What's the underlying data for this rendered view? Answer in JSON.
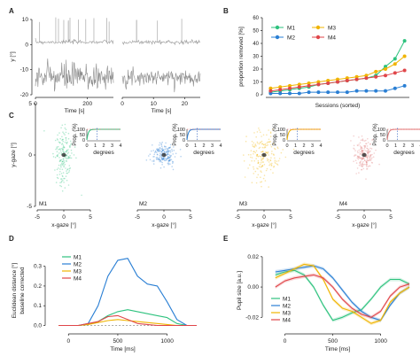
{
  "panel_labels": [
    "A",
    "B",
    "C",
    "D",
    "E"
  ],
  "chart_data": [
    {
      "panel": "A",
      "type": "line",
      "xlabel": "Time [s]",
      "ylabel": "y [°]",
      "left_xticks": [
        "0",
        "200"
      ],
      "right_xticks": [
        "0",
        "10",
        "20"
      ],
      "yticks": [
        "10",
        "0",
        "-10",
        "-20"
      ],
      "xlim_left": [
        0,
        300
      ],
      "xlim_right": [
        0,
        25
      ]
    },
    {
      "panel": "B",
      "type": "line",
      "xlabel": "Sessions (sorted)",
      "ylabel": "proportion removed [%]",
      "yticks": [
        "0",
        "10",
        "20",
        "30",
        "40",
        "50",
        "60"
      ],
      "ylim": [
        0,
        60
      ],
      "legend_position": "top-left",
      "colors": {
        "M1": "#2ec27e",
        "M2": "#2a7fd4",
        "M3": "#f0b400",
        "M4": "#e0464a"
      },
      "x": [
        1,
        2,
        3,
        4,
        5,
        6,
        7,
        8,
        9,
        10,
        11,
        12,
        13,
        14,
        15
      ],
      "series": [
        {
          "name": "M1",
          "values": [
            2,
            3,
            4,
            5,
            6,
            8,
            9,
            10,
            11,
            12,
            13,
            15,
            22,
            28,
            42
          ]
        },
        {
          "name": "M2",
          "values": [
            1,
            1,
            1,
            1,
            2,
            2,
            2,
            2,
            2,
            3,
            3,
            3,
            3,
            5,
            7
          ]
        },
        {
          "name": "M3",
          "values": [
            5,
            6,
            7,
            8,
            9,
            10,
            11,
            12,
            13,
            14,
            15,
            18,
            20,
            24,
            30
          ]
        },
        {
          "name": "M4",
          "values": [
            3,
            4,
            5,
            6,
            7,
            8,
            9,
            10,
            11,
            12,
            13,
            14,
            15,
            17,
            19
          ]
        }
      ]
    },
    {
      "panel": "C",
      "type": "scatter",
      "xlabel": "x-gaze [°]",
      "ylabel": "y-gaze [°]",
      "xticks": [
        "-5",
        "0",
        "5"
      ],
      "yticks": [
        "5",
        "0",
        "-5"
      ],
      "subplots": [
        {
          "name": "M1",
          "color": "#2ec27e",
          "spread_x": 0.9,
          "spread_y": 1.6
        },
        {
          "name": "M2",
          "color": "#2a7fd4",
          "spread_x": 1.1,
          "spread_y": 0.5
        },
        {
          "name": "M3",
          "color": "#f0b400",
          "spread_x": 1.6,
          "spread_y": 1.2
        },
        {
          "name": "M4",
          "color": "#e07a7a",
          "spread_x": 0.9,
          "spread_y": 0.8
        }
      ],
      "inset": {
        "ylabel": "Prop. (%)",
        "xlabel": "degrees",
        "yticks": [
          "100",
          "50",
          "0"
        ],
        "xticks": [
          "0",
          "1",
          "2",
          "3",
          "4"
        ]
      }
    },
    {
      "panel": "D",
      "type": "line",
      "xlabel": "Time [ms]",
      "ylabel": "Euclidean distance [°]",
      "ylabel2": "baseline corrected",
      "xticks": [
        "0",
        "500",
        "1000"
      ],
      "yticks": [
        "0.0",
        "0.1",
        "0.2",
        "0.3"
      ],
      "ylim": [
        -0.02,
        0.37
      ],
      "xlim": [
        -200,
        1300
      ],
      "legend_position": "top-left",
      "x": [
        -100,
        0,
        100,
        200,
        300,
        400,
        500,
        600,
        700,
        800,
        900,
        1000,
        1100,
        1200,
        1300
      ],
      "series": [
        {
          "name": "M1",
          "values": [
            0,
            0,
            0,
            0.005,
            0.02,
            0.05,
            0.07,
            0.08,
            0.07,
            0.06,
            0.05,
            0.04,
            0.01,
            0,
            0
          ]
        },
        {
          "name": "M2",
          "values": [
            0,
            0,
            0,
            0.01,
            0.1,
            0.25,
            0.33,
            0.34,
            0.25,
            0.21,
            0.2,
            0.12,
            0.03,
            0,
            0
          ]
        },
        {
          "name": "M3",
          "values": [
            0,
            0,
            0,
            0.005,
            0.015,
            0.025,
            0.03,
            0.025,
            0.02,
            0.015,
            0.01,
            0.005,
            0,
            0,
            0
          ]
        },
        {
          "name": "M4",
          "values": [
            0,
            0,
            0,
            0.01,
            0.02,
            0.045,
            0.05,
            0.03,
            0.01,
            0.005,
            0,
            0,
            0,
            0,
            0
          ]
        }
      ]
    },
    {
      "panel": "E",
      "type": "line",
      "xlabel": "Time [ms]",
      "ylabel": "Pupil size [a.u.]",
      "xticks": [
        "0",
        "500",
        "1000"
      ],
      "yticks": [
        "0.02",
        "0.00",
        "-0.02"
      ],
      "ylim": [
        -0.028,
        0.024
      ],
      "xlim": [
        -200,
        1300
      ],
      "legend_position": "bottom-left",
      "x": [
        -100,
        0,
        100,
        200,
        300,
        400,
        500,
        600,
        700,
        800,
        900,
        1000,
        1100,
        1200,
        1300
      ],
      "series": [
        {
          "name": "M1",
          "values": [
            0.008,
            0.01,
            0.011,
            0.008,
            0.0,
            -0.012,
            -0.022,
            -0.02,
            -0.017,
            -0.015,
            -0.008,
            0.0,
            0.005,
            0.005,
            0.002
          ]
        },
        {
          "name": "M2",
          "values": [
            0.01,
            0.011,
            0.012,
            0.013,
            0.014,
            0.012,
            0.006,
            -0.002,
            -0.01,
            -0.016,
            -0.02,
            -0.022,
            -0.012,
            -0.004,
            0.0
          ]
        },
        {
          "name": "M3",
          "values": [
            0.006,
            0.009,
            0.012,
            0.015,
            0.014,
            0.005,
            -0.008,
            -0.014,
            -0.016,
            -0.02,
            -0.024,
            -0.022,
            -0.01,
            -0.004,
            0.0
          ]
        },
        {
          "name": "M4",
          "values": [
            0.0,
            0.004,
            0.006,
            0.007,
            0.008,
            0.006,
            0.0,
            -0.008,
            -0.014,
            -0.018,
            -0.02,
            -0.016,
            -0.006,
            0.0,
            0.002
          ]
        }
      ]
    }
  ],
  "series_colors": {
    "M1": "#2ec27e",
    "M2": "#2a7fd4",
    "M3": "#f0b400",
    "M4": "#e0464a"
  }
}
